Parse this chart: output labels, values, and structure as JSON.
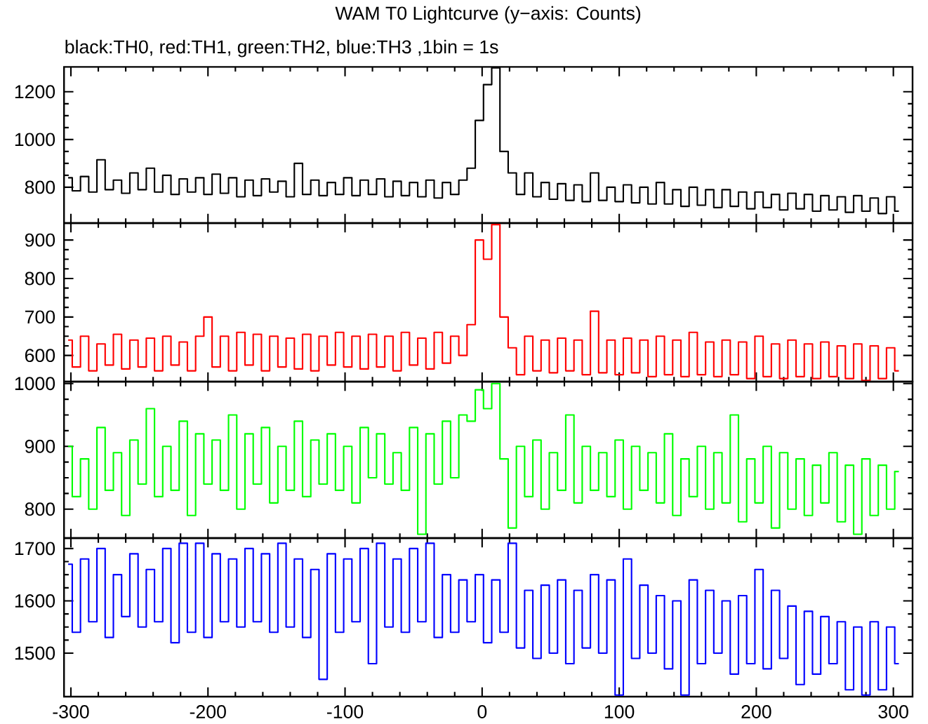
{
  "chart_data": [
    {
      "type": "step",
      "title": "WAM T0 Lightcurve (y−axis: Counts)",
      "subtitle": "black:TH0, red:TH1, green:TH2, blue:TH3 ,1bin = 1s",
      "color": "#000000",
      "x": [
        -302,
        -296,
        -290,
        -284,
        -278,
        -272,
        -266,
        -260,
        -254,
        -248,
        -242,
        -236,
        -230,
        -224,
        -218,
        -212,
        -206,
        -200,
        -194,
        -188,
        -182,
        -176,
        -170,
        -164,
        -158,
        -152,
        -146,
        -140,
        -134,
        -128,
        -122,
        -116,
        -110,
        -104,
        -98,
        -92,
        -86,
        -80,
        -74,
        -68,
        -62,
        -56,
        -50,
        -44,
        -38,
        -32,
        -26,
        -20,
        -14,
        -8,
        -2,
        4,
        10,
        16,
        22,
        28,
        34,
        40,
        46,
        52,
        58,
        64,
        70,
        76,
        82,
        88,
        94,
        100,
        106,
        112,
        118,
        124,
        130,
        136,
        142,
        148,
        154,
        160,
        166,
        172,
        178,
        184,
        190,
        196,
        202,
        208,
        214,
        220,
        226,
        232,
        238,
        244,
        250,
        256,
        262,
        268,
        274,
        280,
        286,
        292,
        298,
        304
      ],
      "values": [
        840,
        785,
        845,
        780,
        915,
        790,
        830,
        775,
        860,
        790,
        880,
        780,
        850,
        770,
        835,
        780,
        840,
        770,
        855,
        775,
        840,
        760,
        830,
        765,
        835,
        780,
        825,
        760,
        900,
        770,
        830,
        765,
        820,
        770,
        840,
        765,
        830,
        770,
        835,
        760,
        825,
        765,
        820,
        760,
        830,
        755,
        820,
        770,
        830,
        880,
        1080,
        1230,
        1300,
        950,
        860,
        770,
        860,
        760,
        820,
        750,
        815,
        745,
        810,
        740,
        860,
        745,
        800,
        740,
        810,
        735,
        800,
        730,
        820,
        730,
        790,
        720,
        800,
        725,
        790,
        715,
        790,
        720,
        780,
        710,
        780,
        715,
        770,
        705,
        775,
        710,
        770,
        700,
        765,
        705,
        760,
        695,
        765,
        700,
        755,
        690,
        760,
        700
      ],
      "xlim": [
        -305,
        314
      ],
      "ylim": [
        650,
        1304
      ],
      "xticks": [
        -300,
        -200,
        -100,
        0,
        100,
        200,
        300
      ],
      "yticks": [
        800,
        1000,
        1200
      ],
      "tick_labels": "y"
    },
    {
      "type": "step",
      "color": "#ff0000",
      "x": [
        -302,
        -296,
        -290,
        -284,
        -278,
        -272,
        -266,
        -260,
        -254,
        -248,
        -242,
        -236,
        -230,
        -224,
        -218,
        -212,
        -206,
        -200,
        -194,
        -188,
        -182,
        -176,
        -170,
        -164,
        -158,
        -152,
        -146,
        -140,
        -134,
        -128,
        -122,
        -116,
        -110,
        -104,
        -98,
        -92,
        -86,
        -80,
        -74,
        -68,
        -62,
        -56,
        -50,
        -44,
        -38,
        -32,
        -26,
        -20,
        -14,
        -8,
        -2,
        4,
        10,
        16,
        22,
        28,
        34,
        40,
        46,
        52,
        58,
        64,
        70,
        76,
        82,
        88,
        94,
        100,
        106,
        112,
        118,
        124,
        130,
        136,
        142,
        148,
        154,
        160,
        166,
        172,
        178,
        184,
        190,
        196,
        202,
        208,
        214,
        220,
        226,
        232,
        238,
        244,
        250,
        256,
        262,
        268,
        274,
        280,
        286,
        292,
        298,
        304
      ],
      "values": [
        640,
        570,
        650,
        560,
        630,
        575,
        655,
        565,
        640,
        570,
        645,
        560,
        650,
        575,
        635,
        560,
        650,
        700,
        570,
        650,
        560,
        660,
        575,
        655,
        560,
        650,
        570,
        645,
        565,
        655,
        560,
        650,
        575,
        660,
        570,
        650,
        565,
        655,
        570,
        650,
        560,
        660,
        575,
        645,
        565,
        660,
        580,
        650,
        600,
        680,
        900,
        850,
        940,
        700,
        620,
        550,
        650,
        560,
        640,
        555,
        645,
        560,
        640,
        550,
        715,
        555,
        640,
        550,
        645,
        555,
        640,
        545,
        650,
        550,
        640,
        545,
        660,
        550,
        635,
        545,
        640,
        550,
        635,
        540,
        650,
        545,
        630,
        540,
        640,
        545,
        630,
        540,
        635,
        545,
        625,
        540,
        630,
        535,
        625,
        540,
        620,
        560
      ],
      "xlim": [
        -305,
        314
      ],
      "ylim": [
        532,
        944
      ],
      "xticks": [
        -300,
        -200,
        -100,
        0,
        100,
        200,
        300
      ],
      "yticks": [
        600,
        700,
        800,
        900
      ],
      "tick_labels": "y"
    },
    {
      "type": "step",
      "color": "#00ff00",
      "x": [
        -302,
        -296,
        -290,
        -284,
        -278,
        -272,
        -266,
        -260,
        -254,
        -248,
        -242,
        -236,
        -230,
        -224,
        -218,
        -212,
        -206,
        -200,
        -194,
        -188,
        -182,
        -176,
        -170,
        -164,
        -158,
        -152,
        -146,
        -140,
        -134,
        -128,
        -122,
        -116,
        -110,
        -104,
        -98,
        -92,
        -86,
        -80,
        -74,
        -68,
        -62,
        -56,
        -50,
        -44,
        -38,
        -32,
        -26,
        -20,
        -14,
        -8,
        -2,
        4,
        10,
        16,
        22,
        28,
        34,
        40,
        46,
        52,
        58,
        64,
        70,
        76,
        82,
        88,
        94,
        100,
        106,
        112,
        118,
        124,
        130,
        136,
        142,
        148,
        154,
        160,
        166,
        172,
        178,
        184,
        190,
        196,
        202,
        208,
        214,
        220,
        226,
        232,
        238,
        244,
        250,
        256,
        262,
        268,
        274,
        280,
        286,
        292,
        298,
        304
      ],
      "values": [
        900,
        820,
        880,
        800,
        930,
        830,
        890,
        790,
        910,
        840,
        960,
        820,
        900,
        830,
        940,
        790,
        920,
        840,
        910,
        830,
        950,
        800,
        920,
        840,
        930,
        810,
        900,
        830,
        940,
        820,
        910,
        840,
        920,
        830,
        900,
        810,
        930,
        850,
        920,
        840,
        890,
        830,
        930,
        760,
        920,
        840,
        940,
        850,
        950,
        940,
        990,
        960,
        1000,
        880,
        770,
        900,
        820,
        910,
        800,
        890,
        830,
        950,
        810,
        900,
        830,
        890,
        820,
        910,
        800,
        900,
        830,
        890,
        810,
        920,
        790,
        880,
        820,
        900,
        800,
        890,
        810,
        950,
        780,
        880,
        810,
        900,
        770,
        890,
        800,
        880,
        790,
        870,
        810,
        890,
        780,
        870,
        760,
        880,
        790,
        870,
        800,
        860
      ],
      "xlim": [
        -305,
        314
      ],
      "ylim": [
        754,
        1003
      ],
      "xticks": [
        -300,
        -200,
        -100,
        0,
        100,
        200,
        300
      ],
      "yticks": [
        800,
        900,
        1000
      ],
      "tick_labels": "y"
    },
    {
      "type": "step",
      "color": "#0000ff",
      "x": [
        -302,
        -296,
        -290,
        -284,
        -278,
        -272,
        -266,
        -260,
        -254,
        -248,
        -242,
        -236,
        -230,
        -224,
        -218,
        -212,
        -206,
        -200,
        -194,
        -188,
        -182,
        -176,
        -170,
        -164,
        -158,
        -152,
        -146,
        -140,
        -134,
        -128,
        -122,
        -116,
        -110,
        -104,
        -98,
        -92,
        -86,
        -80,
        -74,
        -68,
        -62,
        -56,
        -50,
        -44,
        -38,
        -32,
        -26,
        -20,
        -14,
        -8,
        -2,
        4,
        10,
        16,
        22,
        28,
        34,
        40,
        46,
        52,
        58,
        64,
        70,
        76,
        82,
        88,
        94,
        100,
        106,
        112,
        118,
        124,
        130,
        136,
        142,
        148,
        154,
        160,
        166,
        172,
        178,
        184,
        190,
        196,
        202,
        208,
        214,
        220,
        226,
        232,
        238,
        244,
        250,
        256,
        262,
        268,
        274,
        280,
        286,
        292,
        298,
        304
      ],
      "values": [
        1670,
        1540,
        1680,
        1560,
        1700,
        1530,
        1650,
        1570,
        1690,
        1550,
        1660,
        1560,
        1700,
        1520,
        1710,
        1540,
        1710,
        1530,
        1690,
        1560,
        1680,
        1550,
        1700,
        1560,
        1690,
        1540,
        1710,
        1550,
        1680,
        1530,
        1660,
        1450,
        1690,
        1540,
        1680,
        1560,
        1700,
        1480,
        1710,
        1550,
        1680,
        1540,
        1700,
        1560,
        1710,
        1530,
        1650,
        1540,
        1640,
        1560,
        1650,
        1520,
        1640,
        1540,
        1710,
        1510,
        1620,
        1490,
        1630,
        1500,
        1640,
        1480,
        1620,
        1510,
        1650,
        1500,
        1640,
        1420,
        1680,
        1490,
        1630,
        1500,
        1610,
        1470,
        1600,
        1420,
        1640,
        1480,
        1620,
        1500,
        1600,
        1460,
        1610,
        1480,
        1660,
        1470,
        1620,
        1490,
        1590,
        1440,
        1580,
        1460,
        1570,
        1480,
        1560,
        1430,
        1550,
        1420,
        1560,
        1430,
        1550,
        1480
      ],
      "xlim": [
        -305,
        314
      ],
      "ylim": [
        1417,
        1720
      ],
      "xticks": [
        -300,
        -200,
        -100,
        0,
        100,
        200,
        300
      ],
      "yticks": [
        1500,
        1600,
        1700
      ]
    }
  ]
}
